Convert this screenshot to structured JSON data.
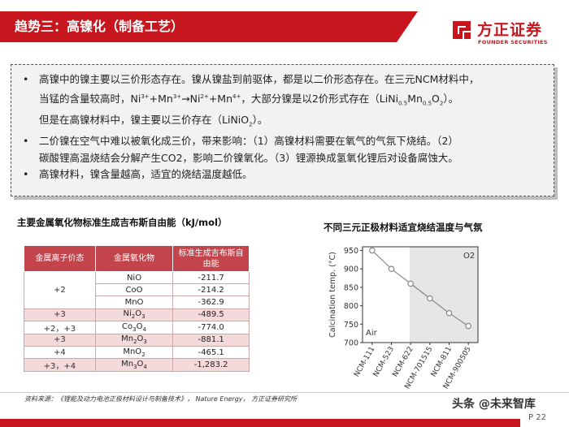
{
  "header": {
    "title": "趋势三：高镍化（制备工艺）"
  },
  "logo": {
    "cn": "方正证券",
    "en": "FOUNDER SECURITIES"
  },
  "bullets": {
    "b1_line1": "高镍中的镍主要以三价形态存在。镍从镍盐到前驱体，都是以二价形态存在。在三元NCM材料中，",
    "b1_line2_pre": "当锰的含量较高时，Ni",
    "b1_line2_mid": "，大部分镍是以2价形式存在（LiNi",
    "b1_line2_end": "）。",
    "b1_line3": "但是在高镍材料中，镍主要以三价存在（LiNiO",
    "b1_line3_end": "）。",
    "b2_line1": "二价镍在空气中难以被氧化成三价，带来影响：（1）高镍材料需要在氧气的气氛下烧结。（2）",
    "b2_line2": "碳酸锂高温烧结会分解产生CO2，影响二价镍氧化。（3）锂源换成氢氧化锂后对设备腐蚀大。",
    "b3_line1": "高镍材料，镍含量越高，适宜的烧结温度越低。"
  },
  "left_section": {
    "title": "主要金属氧化物标准生成吉布斯自由能（kJ/mol）"
  },
  "table": {
    "headers": [
      "金属离子价态",
      "金属氧化物",
      "标准生成吉布斯自由能"
    ],
    "rows": [
      {
        "cation": "+2",
        "oxide": "NiO",
        "value": "-211.7"
      },
      {
        "cation": "",
        "oxide": "CoO",
        "value": "-214.2"
      },
      {
        "cation": "",
        "oxide": "MnO",
        "value": "-362.9"
      },
      {
        "cation": "+3",
        "oxide": "Ni2O3",
        "value": "-489.5"
      },
      {
        "cation": "+2，+3",
        "oxide": "Co3O4",
        "value": "-774.0"
      },
      {
        "cation": "+3",
        "oxide": "Mn2O3",
        "value": "-881.1"
      },
      {
        "cation": "+4",
        "oxide": "MnO2",
        "value": "-465.1"
      },
      {
        "cation": "+3，+4",
        "oxide": "Mn3O4",
        "value": "-1,283.2"
      }
    ]
  },
  "right_section": {
    "title": "不同三元正极材料适宜烧结温度与气氛"
  },
  "chart_data": {
    "type": "line",
    "categories": [
      "NCM-111",
      "NCM-523",
      "NCM-622",
      "NCM-701515",
      "NCM-811",
      "NCM-900505"
    ],
    "values": [
      950,
      900,
      860,
      820,
      780,
      745
    ],
    "ylabel": "Calcination temp. (°C)",
    "ylim": [
      700,
      960
    ],
    "yticks": [
      700,
      750,
      800,
      850,
      900,
      950
    ],
    "regions": {
      "left": "Air",
      "right": "O2"
    },
    "colors": {
      "line": "#888888",
      "marker_face": "#ffffff",
      "shaded": "#e6e6e6"
    }
  },
  "footer": {
    "source": "资料来源：《锂能及动力电池正极材料设计与制备技术》， Nature Energy， 方正证券研究所",
    "page": "P 22",
    "watermark": "头条 @未来智库"
  }
}
